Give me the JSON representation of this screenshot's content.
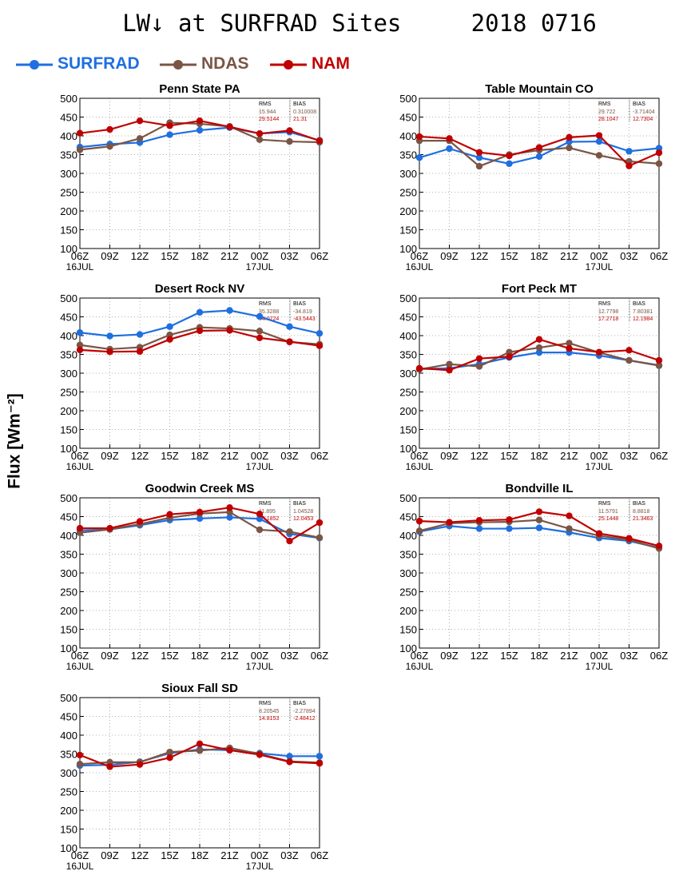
{
  "page": {
    "title": "LW↓ at SURFRAD Sites     2018 0716"
  },
  "legend": {
    "items": [
      {
        "label": "SURFRAD",
        "color": "#1f6fe0"
      },
      {
        "label": "NDAS",
        "color": "#7a5545"
      },
      {
        "label": "NAM",
        "color": "#c00000"
      }
    ]
  },
  "ylabel": "Flux [Wm⁻²]",
  "chart_data": [
    {
      "type": "line",
      "title": "Penn State PA",
      "ylim": [
        100,
        500
      ],
      "grid": true,
      "x": [
        "06Z",
        "09Z",
        "12Z",
        "15Z",
        "18Z",
        "21Z",
        "00Z",
        "03Z",
        "06Z"
      ],
      "x_sublabels": [
        "16JUL",
        "",
        "",
        "",
        "",
        "",
        "17JUL",
        "",
        ""
      ],
      "yticks": [
        100,
        150,
        200,
        250,
        300,
        350,
        400,
        450,
        500
      ],
      "stats": {
        "header": [
          "RMS",
          "BIAS"
        ],
        "rows": [
          [
            "15.944",
            "0.310008"
          ],
          [
            "29.5144",
            "21.31"
          ]
        ]
      },
      "series": [
        {
          "name": "SURFRAD",
          "values": [
            370,
            378,
            382,
            403,
            415,
            422,
            406,
            410,
            388
          ]
        },
        {
          "name": "NDAS",
          "values": [
            363,
            372,
            393,
            435,
            432,
            425,
            390,
            385,
            383
          ]
        },
        {
          "name": "NAM",
          "values": [
            407,
            417,
            440,
            427,
            440,
            424,
            406,
            414,
            387
          ]
        }
      ]
    },
    {
      "type": "line",
      "title": "Table Mountain CO",
      "ylim": [
        100,
        500
      ],
      "grid": true,
      "x": [
        "06Z",
        "09Z",
        "12Z",
        "15Z",
        "18Z",
        "21Z",
        "00Z",
        "03Z",
        "06Z"
      ],
      "x_sublabels": [
        "16JUL",
        "",
        "",
        "",
        "",
        "",
        "17JUL",
        "",
        ""
      ],
      "yticks": [
        100,
        150,
        200,
        250,
        300,
        350,
        400,
        450,
        500
      ],
      "stats": {
        "header": [
          "RMS",
          "BIAS"
        ],
        "rows": [
          [
            "29.722",
            "-3.71404"
          ],
          [
            "28.1047",
            "12.7304"
          ]
        ]
      },
      "series": [
        {
          "name": "SURFRAD",
          "values": [
            342,
            366,
            342,
            326,
            345,
            384,
            385,
            359,
            367
          ]
        },
        {
          "name": "NDAS",
          "values": [
            387,
            387,
            319,
            350,
            362,
            368,
            348,
            332,
            326
          ]
        },
        {
          "name": "NAM",
          "values": [
            398,
            393,
            356,
            347,
            369,
            396,
            401,
            320,
            355
          ]
        }
      ]
    },
    {
      "type": "line",
      "title": "Desert Rock NV",
      "ylim": [
        100,
        500
      ],
      "grid": true,
      "x": [
        "06Z",
        "09Z",
        "12Z",
        "15Z",
        "18Z",
        "21Z",
        "00Z",
        "03Z",
        "06Z"
      ],
      "x_sublabels": [
        "16JUL",
        "",
        "",
        "",
        "",
        "",
        "17JUL",
        "",
        ""
      ],
      "yticks": [
        100,
        150,
        200,
        250,
        300,
        350,
        400,
        450,
        500
      ],
      "stats": {
        "header": [
          "RMS",
          "BIAS"
        ],
        "rows": [
          [
            "35.3288",
            "-34.819"
          ],
          [
            "44.0724",
            "-43.5443"
          ]
        ]
      },
      "series": [
        {
          "name": "SURFRAD",
          "values": [
            408,
            399,
            403,
            424,
            462,
            467,
            451,
            424,
            406
          ]
        },
        {
          "name": "NDAS",
          "values": [
            375,
            364,
            369,
            402,
            422,
            419,
            412,
            383,
            377
          ]
        },
        {
          "name": "NAM",
          "values": [
            362,
            357,
            358,
            390,
            413,
            414,
            394,
            384,
            373
          ]
        }
      ]
    },
    {
      "type": "line",
      "title": "Fort Peck MT",
      "ylim": [
        100,
        500
      ],
      "grid": true,
      "x": [
        "06Z",
        "09Z",
        "12Z",
        "15Z",
        "18Z",
        "21Z",
        "00Z",
        "03Z",
        "06Z"
      ],
      "x_sublabels": [
        "16JUL",
        "",
        "",
        "",
        "",
        "",
        "17JUL",
        "",
        ""
      ],
      "yticks": [
        100,
        150,
        200,
        250,
        300,
        350,
        400,
        450,
        500
      ],
      "stats": {
        "header": [
          "RMS",
          "BIAS"
        ],
        "rows": [
          [
            "12.7798",
            "7.80381"
          ],
          [
            "17.2718",
            "12.1984"
          ]
        ]
      },
      "series": [
        {
          "name": "SURFRAD",
          "values": [
            311,
            313,
            324,
            342,
            355,
            355,
            347,
            334,
            321
          ]
        },
        {
          "name": "NDAS",
          "values": [
            310,
            324,
            318,
            356,
            368,
            380,
            355,
            334,
            320
          ]
        },
        {
          "name": "NAM",
          "values": [
            313,
            308,
            339,
            344,
            390,
            366,
            356,
            361,
            334
          ]
        }
      ]
    },
    {
      "type": "line",
      "title": "Goodwin Creek MS",
      "ylim": [
        100,
        500
      ],
      "grid": true,
      "x": [
        "06Z",
        "09Z",
        "12Z",
        "15Z",
        "18Z",
        "21Z",
        "00Z",
        "03Z",
        "06Z"
      ],
      "x_sublabels": [
        "16JUL",
        "",
        "",
        "",
        "",
        "",
        "17JUL",
        "",
        ""
      ],
      "yticks": [
        100,
        150,
        200,
        250,
        300,
        350,
        400,
        450,
        500
      ],
      "stats": {
        "header": [
          "RMS",
          "BIAS"
        ],
        "rows": [
          [
            "11.895",
            "1.04528"
          ],
          [
            "18.1852",
            "12.0453"
          ]
        ]
      },
      "series": [
        {
          "name": "SURFRAD",
          "values": [
            413,
            416,
            427,
            441,
            445,
            448,
            444,
            404,
            393
          ]
        },
        {
          "name": "NDAS",
          "values": [
            407,
            416,
            430,
            447,
            458,
            462,
            415,
            410,
            394
          ]
        },
        {
          "name": "NAM",
          "values": [
            419,
            419,
            437,
            456,
            462,
            474,
            457,
            385,
            434
          ]
        }
      ]
    },
    {
      "type": "line",
      "title": "Bondville IL",
      "ylim": [
        100,
        500
      ],
      "grid": true,
      "x": [
        "06Z",
        "09Z",
        "12Z",
        "15Z",
        "18Z",
        "21Z",
        "00Z",
        "03Z",
        "06Z"
      ],
      "x_sublabels": [
        "16JUL",
        "",
        "",
        "",
        "",
        "",
        "17JUL",
        "",
        ""
      ],
      "yticks": [
        100,
        150,
        200,
        250,
        300,
        350,
        400,
        450,
        500
      ],
      "stats": {
        "header": [
          "RMS",
          "BIAS"
        ],
        "rows": [
          [
            "11.5791",
            "8.8818"
          ],
          [
            "25.1448",
            "21.3463"
          ]
        ]
      },
      "series": [
        {
          "name": "SURFRAD",
          "values": [
            410,
            425,
            418,
            418,
            420,
            408,
            393,
            385,
            367
          ]
        },
        {
          "name": "NDAS",
          "values": [
            412,
            432,
            435,
            436,
            441,
            418,
            399,
            388,
            365
          ]
        },
        {
          "name": "NAM",
          "values": [
            438,
            435,
            440,
            442,
            463,
            452,
            405,
            392,
            372
          ]
        }
      ]
    },
    {
      "type": "line",
      "title": "Sioux Fall SD",
      "ylim": [
        100,
        500
      ],
      "grid": true,
      "x": [
        "06Z",
        "09Z",
        "12Z",
        "15Z",
        "18Z",
        "21Z",
        "00Z",
        "03Z",
        "06Z"
      ],
      "x_sublabels": [
        "16JUL",
        "",
        "",
        "",
        "",
        "",
        "17JUL",
        "",
        ""
      ],
      "yticks": [
        100,
        150,
        200,
        250,
        300,
        350,
        400,
        450,
        500
      ],
      "stats": {
        "header": [
          "RMS",
          "BIAS"
        ],
        "rows": [
          [
            "8.20545",
            "-2.27894"
          ],
          [
            "14.8153",
            "-2.48412"
          ]
        ]
      },
      "series": [
        {
          "name": "SURFRAD",
          "values": [
            319,
            321,
            329,
            352,
            362,
            360,
            352,
            344,
            344
          ]
        },
        {
          "name": "NDAS",
          "values": [
            323,
            328,
            328,
            355,
            359,
            366,
            350,
            330,
            327
          ]
        },
        {
          "name": "NAM",
          "values": [
            347,
            316,
            322,
            340,
            377,
            360,
            348,
            329,
            325
          ]
        }
      ]
    }
  ]
}
